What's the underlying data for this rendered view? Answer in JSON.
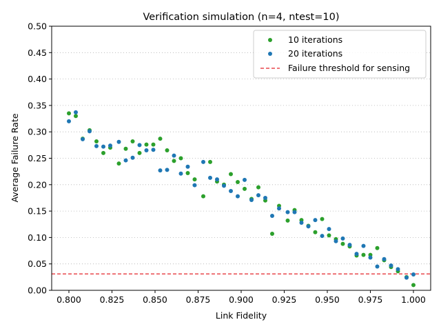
{
  "chart_data": {
    "type": "scatter",
    "title": "Verification simulation (n=4, ntest=10)",
    "xlabel": "Link Fidelity",
    "ylabel": "Average Failure Rate",
    "xlim": [
      0.79,
      1.01
    ],
    "ylim": [
      0.0,
      0.5
    ],
    "xticks": [
      "0.800",
      "0.825",
      "0.850",
      "0.875",
      "0.900",
      "0.925",
      "0.950",
      "0.975",
      "1.000"
    ],
    "xtick_values": [
      0.8,
      0.825,
      0.85,
      0.875,
      0.9,
      0.925,
      0.95,
      0.975,
      1.0
    ],
    "yticks": [
      "0.00",
      "0.05",
      "0.10",
      "0.15",
      "0.20",
      "0.25",
      "0.30",
      "0.35",
      "0.40",
      "0.45",
      "0.50"
    ],
    "ytick_values": [
      0.0,
      0.05,
      0.1,
      0.15,
      0.2,
      0.25,
      0.3,
      0.35,
      0.4,
      0.45,
      0.5
    ],
    "grid": "horizontal dotted",
    "legend_position": "top-right",
    "threshold": {
      "name": "Failure threshold for sensing",
      "y": 0.031,
      "color": "#e8474c"
    },
    "series": [
      {
        "name": "10 iterations",
        "color": "#2ca02c",
        "x": [
          0.8,
          0.804,
          0.808,
          0.812,
          0.816,
          0.82,
          0.824,
          0.829,
          0.833,
          0.837,
          0.841,
          0.845,
          0.849,
          0.853,
          0.857,
          0.861,
          0.865,
          0.869,
          0.873,
          0.878,
          0.882,
          0.886,
          0.89,
          0.894,
          0.898,
          0.902,
          0.906,
          0.91,
          0.914,
          0.918,
          0.922,
          0.927,
          0.931,
          0.935,
          0.939,
          0.943,
          0.947,
          0.951,
          0.955,
          0.959,
          0.963,
          0.967,
          0.971,
          0.975,
          0.979,
          0.983,
          0.987,
          0.991,
          0.996,
          1.0
        ],
        "y": [
          0.335,
          0.33,
          0.287,
          0.303,
          0.282,
          0.26,
          0.27,
          0.24,
          0.268,
          0.282,
          0.26,
          0.276,
          0.276,
          0.287,
          0.265,
          0.245,
          0.25,
          0.222,
          0.21,
          0.178,
          0.243,
          0.206,
          0.2,
          0.22,
          0.205,
          0.192,
          0.173,
          0.195,
          0.17,
          0.107,
          0.16,
          0.132,
          0.152,
          0.133,
          0.122,
          0.11,
          0.135,
          0.104,
          0.097,
          0.088,
          0.083,
          0.066,
          0.067,
          0.067,
          0.08,
          0.057,
          0.044,
          0.036,
          0.025,
          0.01
        ]
      },
      {
        "name": "20 iterations",
        "color": "#1f77b4",
        "x": [
          0.8,
          0.804,
          0.808,
          0.812,
          0.816,
          0.82,
          0.824,
          0.829,
          0.833,
          0.837,
          0.841,
          0.845,
          0.849,
          0.853,
          0.857,
          0.861,
          0.865,
          0.869,
          0.873,
          0.878,
          0.882,
          0.886,
          0.89,
          0.894,
          0.898,
          0.902,
          0.906,
          0.91,
          0.914,
          0.918,
          0.922,
          0.927,
          0.931,
          0.935,
          0.939,
          0.943,
          0.947,
          0.951,
          0.955,
          0.959,
          0.963,
          0.967,
          0.971,
          0.975,
          0.979,
          0.983,
          0.987,
          0.991,
          0.996,
          1.0
        ],
        "y": [
          0.32,
          0.337,
          0.286,
          0.301,
          0.273,
          0.272,
          0.274,
          0.281,
          0.246,
          0.251,
          0.275,
          0.265,
          0.266,
          0.227,
          0.228,
          0.255,
          0.221,
          0.234,
          0.199,
          0.243,
          0.213,
          0.21,
          0.198,
          0.188,
          0.178,
          0.209,
          0.171,
          0.18,
          0.175,
          0.141,
          0.155,
          0.148,
          0.148,
          0.128,
          0.121,
          0.133,
          0.103,
          0.116,
          0.093,
          0.098,
          0.086,
          0.069,
          0.084,
          0.062,
          0.045,
          0.059,
          0.047,
          0.04,
          0.024,
          0.03
        ]
      }
    ]
  }
}
